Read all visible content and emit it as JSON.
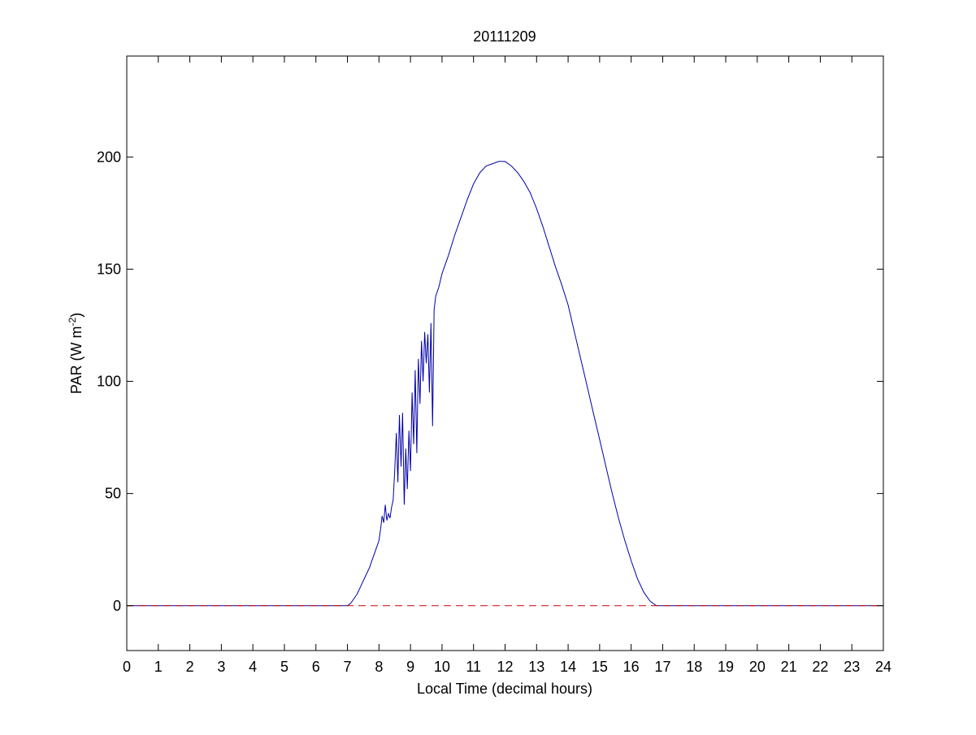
{
  "chart_data": {
    "type": "line",
    "title": "20111209",
    "xlabel": "Local Time (decimal hours)",
    "ylabel_main": "PAR (W m",
    "ylabel_sup": "-2",
    "ylabel_end": ")",
    "xlim": [
      0,
      24
    ],
    "ylim": [
      -20,
      245
    ],
    "xticks": [
      0,
      1,
      2,
      3,
      4,
      5,
      6,
      7,
      8,
      9,
      10,
      11,
      12,
      13,
      14,
      15,
      16,
      17,
      18,
      19,
      20,
      21,
      22,
      23,
      24
    ],
    "xtick_labels": [
      "0",
      "1",
      "2",
      "3",
      "4",
      "5",
      "6",
      "7",
      "8",
      "9",
      "10",
      "11",
      "12",
      "13",
      "14",
      "15",
      "16",
      "17",
      "18",
      "19",
      "20",
      "21",
      "22",
      "23",
      "24"
    ],
    "yticks": [
      0,
      50,
      100,
      150,
      200
    ],
    "ytick_labels": [
      "0",
      "50",
      "100",
      "150",
      "200"
    ],
    "grid": false,
    "series": [
      {
        "color": "#0000aa",
        "style": "solid",
        "x": [
          0,
          7.0,
          7.1,
          7.2,
          7.3,
          7.4,
          7.5,
          7.6,
          7.7,
          7.8,
          7.9,
          8.0,
          8.05,
          8.1,
          8.15,
          8.2,
          8.25,
          8.3,
          8.35,
          8.4,
          8.45,
          8.5,
          8.55,
          8.6,
          8.65,
          8.7,
          8.75,
          8.8,
          8.85,
          8.9,
          8.95,
          9.0,
          9.05,
          9.1,
          9.15,
          9.2,
          9.25,
          9.3,
          9.35,
          9.4,
          9.45,
          9.5,
          9.55,
          9.6,
          9.65,
          9.7,
          9.75,
          9.8,
          9.9,
          10.0,
          10.2,
          10.4,
          10.6,
          10.8,
          11.0,
          11.2,
          11.4,
          11.6,
          11.8,
          12.0,
          12.2,
          12.4,
          12.6,
          12.8,
          13.0,
          13.2,
          13.4,
          13.6,
          13.8,
          14.0,
          14.2,
          14.4,
          14.6,
          14.8,
          15.0,
          15.2,
          15.4,
          15.6,
          15.8,
          16.0,
          16.2,
          16.4,
          16.6,
          16.8,
          17.0,
          17.1,
          17.2,
          24
        ],
        "y": [
          0,
          0,
          1,
          3,
          5,
          8,
          11,
          14,
          17,
          21,
          25,
          29,
          34,
          40,
          37,
          45,
          38,
          41,
          39,
          44,
          47,
          60,
          77,
          55,
          85,
          62,
          86,
          45,
          70,
          52,
          78,
          60,
          95,
          72,
          105,
          68,
          110,
          90,
          118,
          100,
          122,
          108,
          121,
          95,
          126,
          80,
          132,
          138,
          142,
          148,
          156,
          165,
          173,
          181,
          188,
          193,
          196,
          197,
          198,
          198,
          196,
          193,
          189,
          184,
          177,
          169,
          160,
          151,
          143,
          134,
          122,
          110,
          98,
          86,
          74,
          62,
          50,
          39,
          29,
          20,
          12,
          6,
          2,
          0,
          0,
          0,
          0,
          0
        ]
      },
      {
        "color": "#cc0000",
        "style": "dashed",
        "x": [
          0,
          24
        ],
        "y": [
          0,
          0
        ]
      }
    ]
  }
}
